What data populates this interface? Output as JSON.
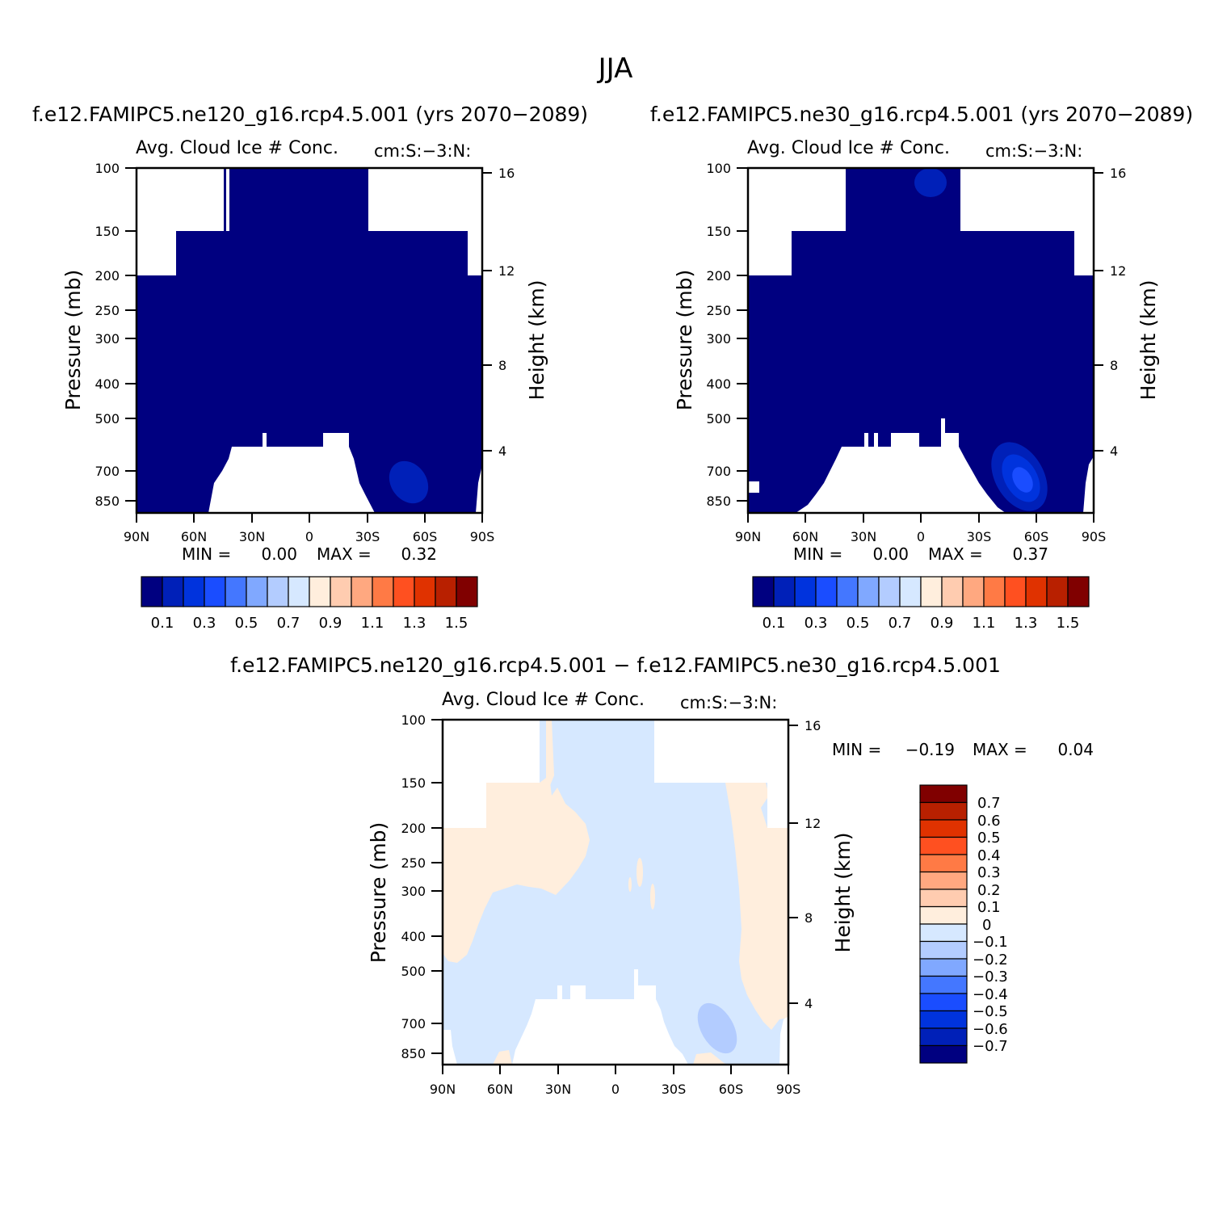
{
  "figure": {
    "title": "JJA"
  },
  "chart_data": [
    {
      "type": "heatmap",
      "case": "f.e12.FAMIPC5.ne120_g16.rcp4.5.001 (yrs 2070−2089)",
      "title": "Avg. Cloud Ice # Conc.",
      "units": "cm:S:−3:N:",
      "xlabel": "",
      "ylabel": "Pressure (mb)",
      "y2label": "Height (km)",
      "x_ticks": [
        "90N",
        "60N",
        "30N",
        "0",
        "30S",
        "60S",
        "90S"
      ],
      "y_ticks": [
        "100",
        "150",
        "200",
        "250",
        "300",
        "400",
        "500",
        "700",
        "850"
      ],
      "y2_ticks": [
        "16",
        "12",
        "8",
        "4"
      ],
      "min_label": "MIN =",
      "min_value": "0.00",
      "max_label": "MAX =",
      "max_value": "0.32",
      "colorbar": {
        "orientation": "horizontal",
        "labels": [
          "0.1",
          "0.3",
          "0.5",
          "0.7",
          "0.9",
          "1.1",
          "1.3",
          "1.5"
        ],
        "colors": [
          "#000080",
          "#0020b8",
          "#0033dd",
          "#1a4dff",
          "#4477ff",
          "#80a8ff",
          "#b3ccff",
          "#d6e8ff",
          "#ffeedd",
          "#ffccb0",
          "#ffa880",
          "#ff7a45",
          "#ff5020",
          "#e03200",
          "#b82000",
          "#800000"
        ]
      }
    },
    {
      "type": "heatmap",
      "case": "f.e12.FAMIPC5.ne30_g16.rcp4.5.001 (yrs 2070−2089)",
      "title": "Avg. Cloud Ice # Conc.",
      "units": "cm:S:−3:N:",
      "xlabel": "",
      "ylabel": "Pressure (mb)",
      "y2label": "Height (km)",
      "x_ticks": [
        "90N",
        "60N",
        "30N",
        "0",
        "30S",
        "60S",
        "90S"
      ],
      "y_ticks": [
        "100",
        "150",
        "200",
        "250",
        "300",
        "400",
        "500",
        "700",
        "850"
      ],
      "y2_ticks": [
        "16",
        "12",
        "8",
        "4"
      ],
      "min_label": "MIN =",
      "min_value": "0.00",
      "max_label": "MAX =",
      "max_value": "0.37",
      "colorbar": {
        "orientation": "horizontal",
        "labels": [
          "0.1",
          "0.3",
          "0.5",
          "0.7",
          "0.9",
          "1.1",
          "1.3",
          "1.5"
        ],
        "colors": [
          "#000080",
          "#0020b8",
          "#0033dd",
          "#1a4dff",
          "#4477ff",
          "#80a8ff",
          "#b3ccff",
          "#d6e8ff",
          "#ffeedd",
          "#ffccb0",
          "#ffa880",
          "#ff7a45",
          "#ff5020",
          "#e03200",
          "#b82000",
          "#800000"
        ]
      }
    },
    {
      "type": "heatmap",
      "case": "f.e12.FAMIPC5.ne120_g16.rcp4.5.001 − f.e12.FAMIPC5.ne30_g16.rcp4.5.001",
      "title": "Avg. Cloud Ice # Conc.",
      "units": "cm:S:−3:N:",
      "xlabel": "",
      "ylabel": "Pressure (mb)",
      "y2label": "Height (km)",
      "x_ticks": [
        "90N",
        "60N",
        "30N",
        "0",
        "30S",
        "60S",
        "90S"
      ],
      "y_ticks": [
        "100",
        "150",
        "200",
        "250",
        "300",
        "400",
        "500",
        "700",
        "850"
      ],
      "y2_ticks": [
        "16",
        "12",
        "8",
        "4"
      ],
      "min_label": "MIN =",
      "min_value": "−0.19",
      "max_label": "MAX =",
      "max_value": "0.04",
      "colorbar": {
        "orientation": "vertical",
        "labels": [
          "0.7",
          "0.6",
          "0.5",
          "0.4",
          "0.3",
          "0.2",
          "0.1",
          "0",
          "−0.1",
          "−0.2",
          "−0.3",
          "−0.4",
          "−0.5",
          "−0.6",
          "−0.7"
        ],
        "colors": [
          "#800000",
          "#b82000",
          "#e03200",
          "#ff5020",
          "#ff7a45",
          "#ffa880",
          "#ffccb0",
          "#ffeedd",
          "#d6e8ff",
          "#b3ccff",
          "#80a8ff",
          "#4477ff",
          "#1a4dff",
          "#0033dd",
          "#0020b8",
          "#000080"
        ]
      }
    }
  ]
}
